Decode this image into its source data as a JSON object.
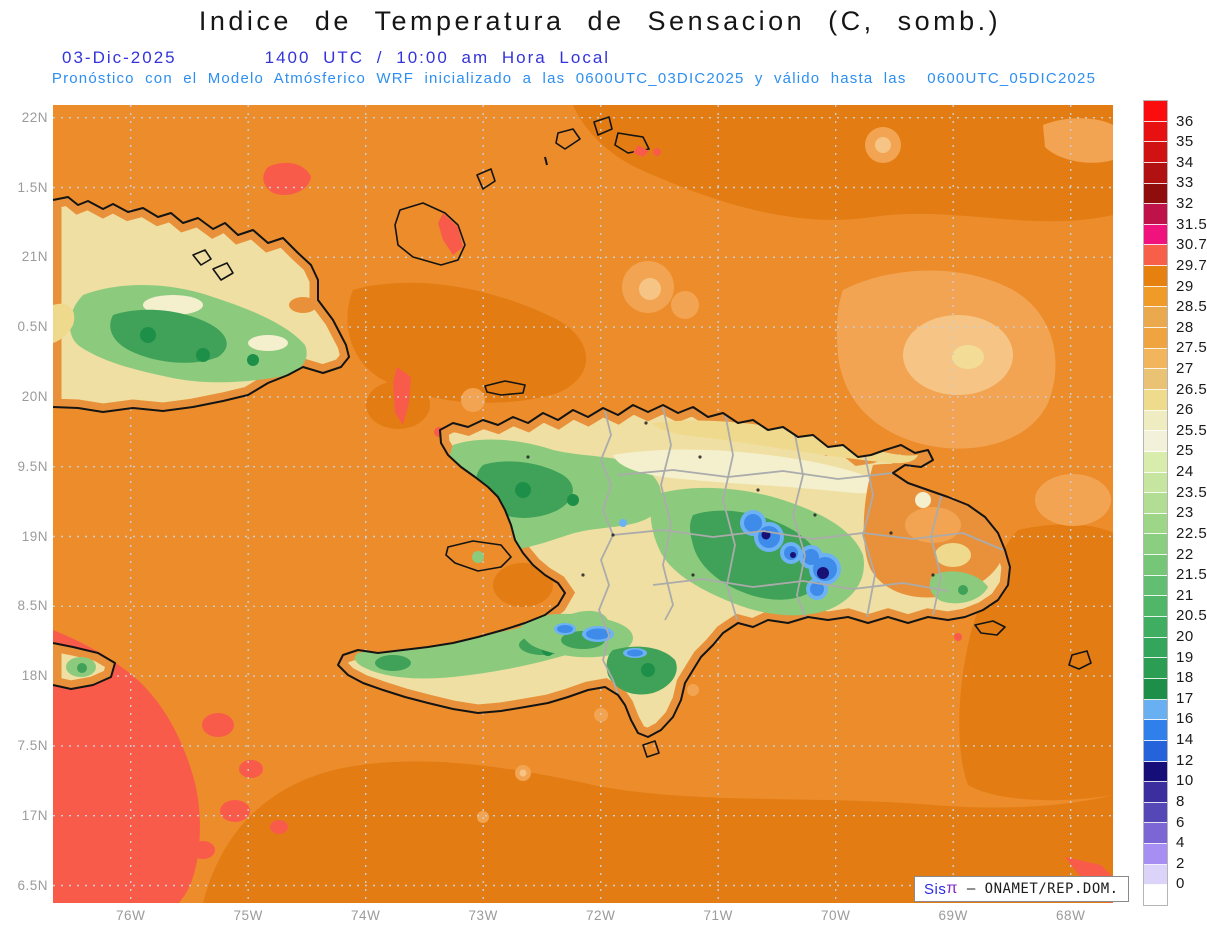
{
  "header": {
    "title": "Indice de Temperatura de Sensacion (C, somb.)",
    "date": "03-Dic-2025",
    "time_line": "1400 UTC / 10:00 am Hora Local",
    "forecast_line": "Pronóstico con el Modelo Atmósferico WRF inicializado a las 0600UTC_03DIC2025 y válido hasta las  0600UTC_05DIC2025"
  },
  "map": {
    "lat_labels": [
      "22N",
      "1.5N",
      "21N",
      "0.5N",
      "20N",
      "9.5N",
      "19N",
      "8.5N",
      "18N",
      "7.5N",
      "17N",
      "6.5N"
    ],
    "lon_labels": [
      "76W",
      "75W",
      "74W",
      "73W",
      "72W",
      "71W",
      "70W",
      "69W",
      "68W"
    ]
  },
  "colorbar": {
    "tick_labels": [
      "36",
      "35",
      "34",
      "33",
      "32",
      "31.5",
      "30.7",
      "29.7",
      "29",
      "28.5",
      "28",
      "27.5",
      "27",
      "26.5",
      "26",
      "25.5",
      "25",
      "24",
      "23.5",
      "23",
      "22.5",
      "22",
      "21.5",
      "21",
      "20.5",
      "20",
      "19",
      "18",
      "17",
      "16",
      "14",
      "12",
      "10",
      "8",
      "6",
      "4",
      "2",
      "0"
    ],
    "swatch_colors": [
      "#FB0D0D",
      "#E81111",
      "#D01212",
      "#B21111",
      "#8F0D0D",
      "#C0124A",
      "#F0137E",
      "#F85F49",
      "#E68110",
      "#F09A28",
      "#E9A94C",
      "#F0A440",
      "#F2B55C",
      "#EAC273",
      "#EFDB8C",
      "#F0ECC2",
      "#F3F1DA",
      "#D8ECAC",
      "#C6E6A0",
      "#B2DE94",
      "#9ED688",
      "#8ACE80",
      "#76C678",
      "#62BE70",
      "#50B668",
      "#40AE60",
      "#34A65C",
      "#2C9E54",
      "#1E8F48",
      "#69B0F2",
      "#2F80EA",
      "#2463DA",
      "#160E78",
      "#3B2FA0",
      "#5647B6",
      "#7B66D4",
      "#A78EF2",
      "#DBD3F8",
      "#FFFFFF"
    ]
  },
  "branding": {
    "sis": "Sis",
    "pi": "π",
    "org": " – ONAMET/REP.DOM."
  },
  "palette": {
    "ocean_base": "#EC8C2B",
    "ocean_dark": "#E37D13",
    "ocean_light": "#F2A452",
    "hot_red": "#F95B4B",
    "cold_blue": "#3E8BEA",
    "cold_navy": "#191076",
    "green": "#8CCB7E",
    "title_blue": "#3434DA",
    "forecast_blue": "#2E8FF0"
  }
}
